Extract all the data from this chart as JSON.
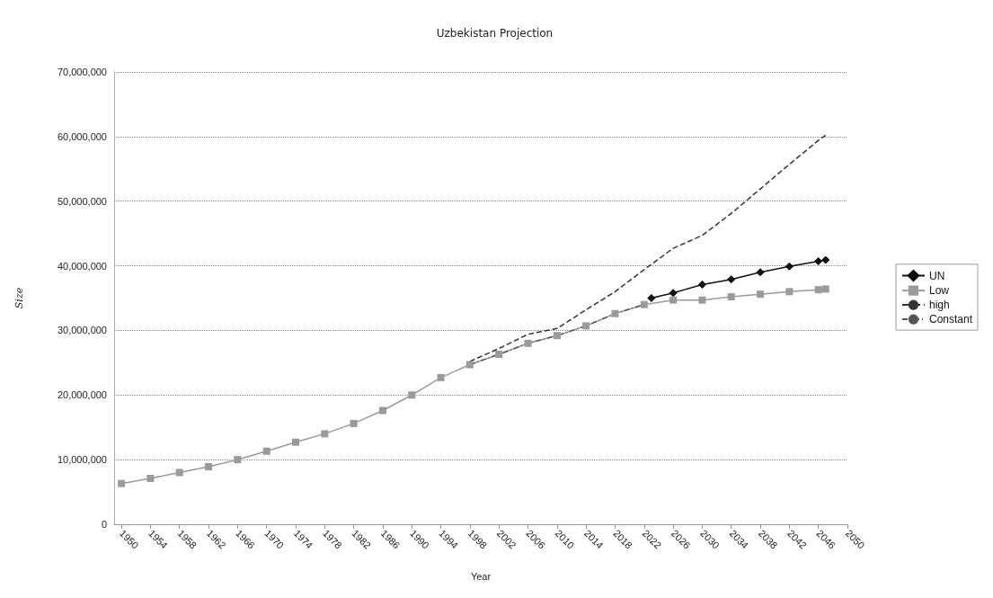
{
  "chart_data": {
    "type": "line",
    "title": "Uzbekistan Projection",
    "xlabel": "Year",
    "ylabel": "Size",
    "xlim": [
      1949,
      2050
    ],
    "xticks": [
      1950,
      1954,
      1958,
      1962,
      1966,
      1970,
      1974,
      1978,
      1982,
      1986,
      1990,
      1994,
      1998,
      2002,
      2006,
      2010,
      2014,
      2018,
      2022,
      2026,
      2030,
      2034,
      2038,
      2042,
      2046,
      2050
    ],
    "ylim": [
      0,
      70000000
    ],
    "yticks": [
      {
        "value": 0,
        "label": "0"
      },
      {
        "value": 10000000,
        "label": "10,000,000"
      },
      {
        "value": 20000000,
        "label": "20,000,000"
      },
      {
        "value": 30000000,
        "label": "30,000,000"
      },
      {
        "value": 40000000,
        "label": "40,000,000"
      },
      {
        "value": 50000000,
        "label": "50,000,000"
      },
      {
        "value": 60000000,
        "label": "60,000,000"
      },
      {
        "value": 70000000,
        "label": "70,000,000"
      }
    ],
    "grid": "y",
    "legend": "right",
    "series": [
      {
        "name": "UN",
        "color": "#111111",
        "marker": "diamond",
        "line_style": "solid",
        "x": [
          2023,
          2026,
          2030,
          2034,
          2038,
          2042,
          2046,
          2047
        ],
        "values": [
          35000000,
          35800000,
          37100000,
          37900000,
          39000000,
          39900000,
          40700000,
          40900000
        ]
      },
      {
        "name": "Low",
        "color": "#9a9a9a",
        "marker": "square",
        "line_style": "solid",
        "x": [
          1950,
          1954,
          1958,
          1962,
          1966,
          1970,
          1974,
          1978,
          1982,
          1986,
          1990,
          1994,
          1998,
          2002,
          2006,
          2010,
          2014,
          2018,
          2022,
          2026,
          2030,
          2034,
          2038,
          2042,
          2046,
          2047
        ],
        "values": [
          6300000,
          7100000,
          8000000,
          8900000,
          10000000,
          11300000,
          12700000,
          14000000,
          15600000,
          17600000,
          20000000,
          22700000,
          24700000,
          26300000,
          28000000,
          29200000,
          30700000,
          32600000,
          34000000,
          34700000,
          34700000,
          35200000,
          35600000,
          36000000,
          36300000,
          36400000
        ]
      },
      {
        "name": "high",
        "color": "#333333",
        "marker": "none",
        "line_style": "dashed",
        "x": [
          1998,
          2002,
          2006,
          2010,
          2014,
          2018,
          2022,
          2026,
          2030,
          2034,
          2038,
          2042,
          2046,
          2047
        ],
        "values": [
          25200000,
          27200000,
          29400000,
          30300000,
          33200000,
          36000000,
          39400000,
          42700000,
          44700000,
          48100000,
          51900000,
          55700000,
          59400000,
          60200000
        ]
      },
      {
        "name": "Constant",
        "color": "#555555",
        "marker": "none",
        "line_style": "dotted",
        "x": [
          1998,
          2002,
          2006,
          2010,
          2014,
          2018,
          2022
        ],
        "values": [
          24700000,
          26300000,
          28000000,
          29200000,
          30700000,
          32600000,
          34000000
        ]
      }
    ]
  }
}
